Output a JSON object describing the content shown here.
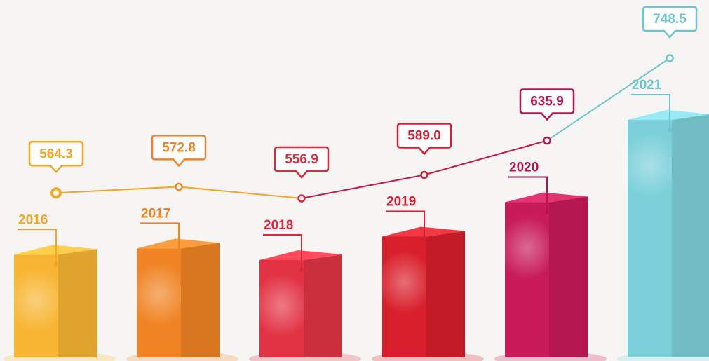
{
  "chart_data": {
    "type": "bar-line",
    "categories": [
      "2016",
      "2017",
      "2018",
      "2019",
      "2020",
      "2021"
    ],
    "values": [
      564.3,
      572.8,
      556.9,
      589.0,
      635.9,
      748.5
    ],
    "value_labels": [
      "564.3",
      "572.8",
      "556.9",
      "589.0",
      "635.9",
      "748.5"
    ],
    "colors": [
      "#f8b533",
      "#f08424",
      "#e23344",
      "#d91f2b",
      "#c81b58",
      "#7dd0d9"
    ],
    "label_colors": [
      "#f2a623",
      "#f08424",
      "#d82a3c",
      "#d21f33",
      "#b81550",
      "#6cc6d2"
    ],
    "line_colors": [
      "#f2a623",
      "#f2a623",
      "#c8184a",
      "#c8184a",
      "#6cc6d2"
    ]
  }
}
